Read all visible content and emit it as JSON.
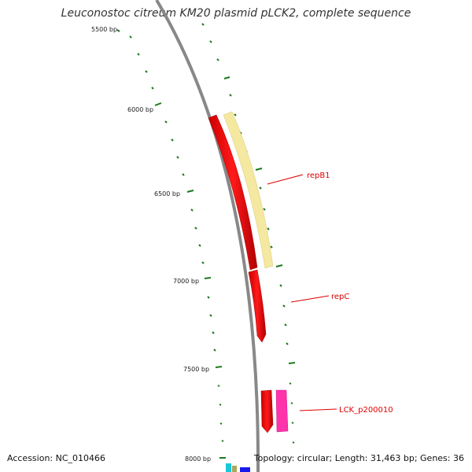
{
  "title": "Leuconostoc citreum KM20 plasmid pLCK2, complete sequence",
  "bp_labels": [
    "5500 bp",
    "6000 bp",
    "6500 bp",
    "7000 bp",
    "7500 bp",
    "8000 bp"
  ],
  "genes": [
    {
      "name": "repB1",
      "color": "#ff0000",
      "partner_color": "#f5e8a0"
    },
    {
      "name": "repC",
      "color": "#ff0000"
    },
    {
      "name": "LCK_p200010",
      "color": "#ff0000",
      "partner_color": "#ff33aa"
    }
  ],
  "colors": {
    "backbone": "#888888",
    "ticks": "#1a7a1a",
    "gene_label": "#dd0000"
  },
  "footer": {
    "accession": "Accession: NC_010466",
    "topology": "Topology: circular; Length: 31,463 bp; Genes: 36"
  }
}
